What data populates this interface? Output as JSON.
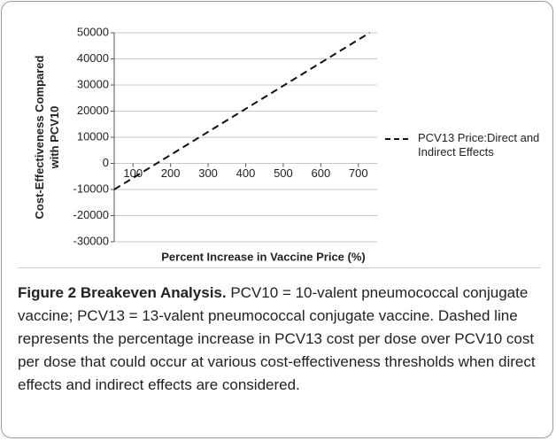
{
  "chart_data": {
    "type": "line",
    "ylabel": [
      "Cost-Effectiveness Compared",
      "with PCV10"
    ],
    "xlabel": "Percent Increase in Vaccine Price (%)",
    "x": [
      50,
      730
    ],
    "series": [
      {
        "name": "PCV13 Price:Direct and Indirect Effects",
        "color": "#111111",
        "dashed": true,
        "values": [
          -10000,
          50000
        ]
      }
    ],
    "xlim": [
      50,
      750
    ],
    "xticks": [
      100,
      200,
      300,
      400,
      500,
      600,
      700
    ],
    "ylim": [
      -30000,
      50000
    ],
    "yticks": [
      -30000,
      -20000,
      -10000,
      0,
      10000,
      20000,
      30000,
      40000,
      50000
    ],
    "grid": true,
    "legend": "right"
  },
  "caption": {
    "label": "Figure 2 Breakeven Analysis.",
    "text": "PCV10 = 10-valent pneumococcal conjugate vaccine; PCV13 = 13-valent pneumococcal conjugate vaccine. Dashed line represents the percentage increase in PCV13 cost per dose over PCV10 cost per dose that could occur at various cost-effectiveness thresholds when direct effects and indirect effects are considered."
  }
}
